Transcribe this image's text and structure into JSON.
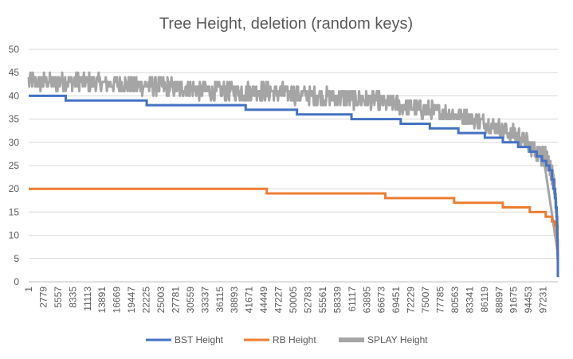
{
  "chart_data": {
    "type": "line",
    "title": "Tree Height, deletion (random keys)",
    "xlabel": "",
    "ylabel": "",
    "ylim": [
      0,
      50
    ],
    "yticks": [
      0,
      5,
      10,
      15,
      20,
      25,
      30,
      35,
      40,
      45,
      50
    ],
    "xlim": [
      1,
      99999
    ],
    "xticks": [
      "1",
      "2779",
      "5557",
      "8335",
      "11113",
      "13891",
      "16669",
      "19447",
      "22225",
      "25003",
      "27781",
      "30559",
      "33337",
      "36115",
      "38893",
      "41671",
      "44449",
      "47227",
      "50005",
      "52783",
      "55561",
      "58339",
      "61117",
      "63895",
      "66673",
      "69451",
      "72229",
      "75007",
      "77785",
      "80563",
      "83341",
      "86119",
      "88897",
      "91675",
      "94453",
      "97231"
    ],
    "legend_position": "bottom",
    "grid": true,
    "series": [
      {
        "name": "BST Height",
        "color": "#4472C4",
        "step": true,
        "x": [
          1,
          7000,
          22300,
          41000,
          50700,
          61000,
          70300,
          75800,
          81200,
          86200,
          89600,
          92500,
          94700,
          96000,
          97000,
          97800,
          98400,
          98900,
          99200,
          99450,
          99600,
          99750,
          99850,
          99920,
          99960,
          99999
        ],
        "y": [
          40,
          39,
          38,
          37,
          36,
          35,
          34,
          33,
          32,
          31,
          30,
          29,
          28,
          27,
          26,
          25,
          24,
          22,
          20,
          18,
          16,
          14,
          12,
          9,
          6,
          1
        ]
      },
      {
        "name": "RB Height",
        "color": "#ED7D31",
        "step": true,
        "x": [
          1,
          45000,
          67400,
          80400,
          89600,
          94700,
          97700,
          98900,
          99450,
          99750,
          99900,
          99999
        ],
        "y": [
          20,
          19,
          18,
          17,
          16,
          15,
          14,
          13,
          12,
          10,
          7,
          1
        ]
      },
      {
        "name": "SPLAY Height",
        "color": "#A5A5A5",
        "noisy": true,
        "x": [
          1,
          10000,
          25000,
          35000,
          45000,
          55000,
          65000,
          75000,
          83000,
          89000,
          93000,
          96000,
          97500,
          98500,
          99200,
          99600,
          99900,
          99999
        ],
        "low": [
          41,
          41,
          40,
          39,
          39,
          38,
          37,
          35,
          34,
          31,
          29,
          26,
          25,
          23,
          20,
          15,
          8,
          1
        ],
        "high": [
          45,
          45,
          44,
          43,
          43,
          42,
          41,
          39,
          37,
          35,
          33,
          30,
          29,
          27,
          24,
          20,
          14,
          6
        ]
      }
    ]
  }
}
